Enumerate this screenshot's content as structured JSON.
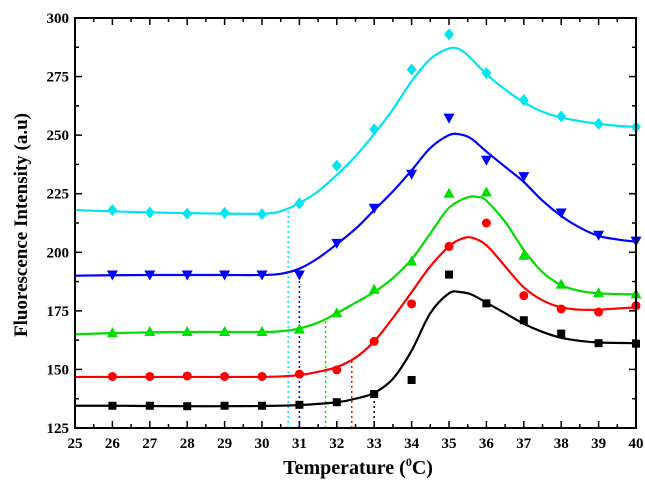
{
  "chart_data": {
    "type": "scatter",
    "xlabel": "Temperature (",
    "xlabel_sup": "0",
    "xlabel_tail": "C)",
    "ylabel": "Fluorescence Intensity (a.u)",
    "xlim": [
      25,
      40
    ],
    "ylim": [
      125,
      300
    ],
    "xticks": [
      "25",
      "26",
      "27",
      "28",
      "29",
      "30",
      "31",
      "32",
      "33",
      "34",
      "35",
      "36",
      "37",
      "38",
      "39",
      "40"
    ],
    "yticks": [
      "125",
      "150",
      "175",
      "200",
      "225",
      "250",
      "275",
      "300"
    ],
    "series": [
      {
        "marker": "square",
        "color": "#000000",
        "x": [
          26,
          27,
          28,
          29,
          30,
          31,
          32,
          33,
          34,
          35,
          36,
          37,
          38,
          39,
          40
        ],
        "y": [
          134.5,
          134.5,
          134.3,
          134.5,
          134.5,
          134.9,
          136,
          139.5,
          145.5,
          190.5,
          178.2,
          171,
          165.3,
          161.2,
          161
        ],
        "fit": [
          [
            25,
            134.5
          ],
          [
            26,
            134.5
          ],
          [
            27,
            134.4
          ],
          [
            28,
            134.3
          ],
          [
            29,
            134.3
          ],
          [
            30,
            134.4
          ],
          [
            31,
            134.8
          ],
          [
            32,
            136
          ],
          [
            32.5,
            137.5
          ],
          [
            33,
            140
          ],
          [
            33.5,
            146
          ],
          [
            34,
            158
          ],
          [
            34.5,
            174
          ],
          [
            35,
            182.5
          ],
          [
            35.3,
            183
          ],
          [
            35.6,
            182
          ],
          [
            36,
            178.5
          ],
          [
            36.5,
            174
          ],
          [
            37,
            169.5
          ],
          [
            37.5,
            166
          ],
          [
            38,
            163.5
          ],
          [
            38.5,
            162.2
          ],
          [
            39,
            161.5
          ],
          [
            40,
            161.2
          ]
        ],
        "transition": 33.0
      },
      {
        "marker": "circle",
        "color": "#ff0000",
        "x": [
          26,
          27,
          28,
          29,
          30,
          31,
          32,
          33,
          34,
          35,
          36,
          37,
          38,
          39,
          40
        ],
        "y": [
          147,
          147,
          147.2,
          147,
          147,
          148,
          149.8,
          162,
          178,
          202.5,
          212.5,
          181.5,
          175.8,
          174.5,
          177.2
        ],
        "fit": [
          [
            25,
            146.8
          ],
          [
            26,
            146.8
          ],
          [
            27,
            146.8
          ],
          [
            28,
            146.8
          ],
          [
            29,
            146.8
          ],
          [
            30,
            146.8
          ],
          [
            30.5,
            147
          ],
          [
            31,
            147.6
          ],
          [
            31.5,
            149
          ],
          [
            32,
            151
          ],
          [
            32.5,
            155
          ],
          [
            33,
            162
          ],
          [
            33.5,
            172
          ],
          [
            34,
            183
          ],
          [
            34.5,
            194
          ],
          [
            35,
            202.5
          ],
          [
            35.3,
            205.5
          ],
          [
            35.6,
            206.3
          ],
          [
            36,
            203
          ],
          [
            36.5,
            194
          ],
          [
            37,
            185
          ],
          [
            37.5,
            179.5
          ],
          [
            38,
            176.5
          ],
          [
            38.5,
            175.5
          ],
          [
            39,
            175.5
          ],
          [
            39.5,
            176
          ],
          [
            40,
            176.5
          ]
        ],
        "transition": 32.4
      },
      {
        "marker": "triangle-up",
        "color": "#00dd00",
        "x": [
          26,
          27,
          28,
          29,
          30,
          31,
          32,
          33,
          34,
          35,
          36,
          37,
          38,
          39,
          40
        ],
        "y": [
          165.5,
          166,
          166,
          166,
          166,
          167,
          174,
          184,
          196,
          225,
          225.5,
          198.5,
          186.2,
          182.5,
          182
        ],
        "fit": [
          [
            25,
            165
          ],
          [
            26,
            165.5
          ],
          [
            27,
            165.8
          ],
          [
            28,
            166
          ],
          [
            29,
            166
          ],
          [
            30,
            166
          ],
          [
            30.5,
            166.3
          ],
          [
            31,
            167.5
          ],
          [
            31.5,
            170
          ],
          [
            32,
            174
          ],
          [
            32.5,
            178.5
          ],
          [
            33,
            183
          ],
          [
            33.5,
            189
          ],
          [
            34,
            197
          ],
          [
            34.5,
            208
          ],
          [
            35,
            219
          ],
          [
            35.5,
            223.5
          ],
          [
            35.8,
            223.5
          ],
          [
            36,
            222
          ],
          [
            36.5,
            213
          ],
          [
            37,
            201
          ],
          [
            37.5,
            191.5
          ],
          [
            38,
            186
          ],
          [
            38.5,
            183.5
          ],
          [
            39,
            182.5
          ],
          [
            40,
            182
          ]
        ],
        "transition": 31.7
      },
      {
        "marker": "triangle-down",
        "color": "#0000ff",
        "x": [
          26,
          27,
          28,
          29,
          30,
          31,
          32,
          33,
          34,
          35,
          36,
          37,
          38,
          39,
          40
        ],
        "y": [
          190.5,
          190.5,
          190.5,
          190.5,
          190.5,
          190.5,
          204,
          219,
          233.5,
          257.5,
          239.5,
          232.5,
          217,
          207.5,
          205
        ],
        "fit": [
          [
            25,
            190
          ],
          [
            26,
            190.2
          ],
          [
            27,
            190.3
          ],
          [
            28,
            190.3
          ],
          [
            29,
            190.3
          ],
          [
            30,
            190.3
          ],
          [
            30.5,
            190.8
          ],
          [
            31,
            193
          ],
          [
            31.5,
            197.5
          ],
          [
            32,
            203.5
          ],
          [
            32.5,
            210
          ],
          [
            33,
            218
          ],
          [
            33.5,
            226
          ],
          [
            34,
            235
          ],
          [
            34.5,
            244.5
          ],
          [
            35,
            250
          ],
          [
            35.3,
            250.3
          ],
          [
            35.6,
            248.5
          ],
          [
            36,
            243
          ],
          [
            36.5,
            236.5
          ],
          [
            37,
            230
          ],
          [
            37.5,
            222
          ],
          [
            38,
            215.5
          ],
          [
            38.5,
            210.5
          ],
          [
            39,
            207
          ],
          [
            39.5,
            205.5
          ],
          [
            40,
            204.5
          ]
        ],
        "transition": 31.0
      },
      {
        "marker": "diamond",
        "color": "#00e5ee",
        "x": [
          26,
          27,
          28,
          29,
          30,
          31,
          32,
          33,
          34,
          35,
          36,
          37,
          38,
          39,
          40
        ],
        "y": [
          218,
          217,
          216.5,
          216.8,
          216.3,
          220.8,
          237,
          252.5,
          278,
          293,
          276.5,
          265,
          258,
          254.8,
          253.5
        ],
        "fit": [
          [
            25,
            218
          ],
          [
            26,
            217.5
          ],
          [
            27,
            217
          ],
          [
            28,
            216.7
          ],
          [
            29,
            216.5
          ],
          [
            30,
            216.5
          ],
          [
            30.5,
            217.5
          ],
          [
            31,
            221
          ],
          [
            31.5,
            226
          ],
          [
            32,
            233
          ],
          [
            32.5,
            241
          ],
          [
            33,
            250.5
          ],
          [
            33.5,
            261
          ],
          [
            34,
            273
          ],
          [
            34.5,
            282.5
          ],
          [
            35,
            287
          ],
          [
            35.3,
            286.5
          ],
          [
            35.6,
            282.5
          ],
          [
            36,
            276
          ],
          [
            36.5,
            269.5
          ],
          [
            37,
            264
          ],
          [
            37.5,
            260
          ],
          [
            38,
            257.5
          ],
          [
            38.5,
            256
          ],
          [
            39,
            254.8
          ],
          [
            39.5,
            254
          ],
          [
            40,
            253.5
          ]
        ],
        "transition": 30.7
      }
    ]
  }
}
